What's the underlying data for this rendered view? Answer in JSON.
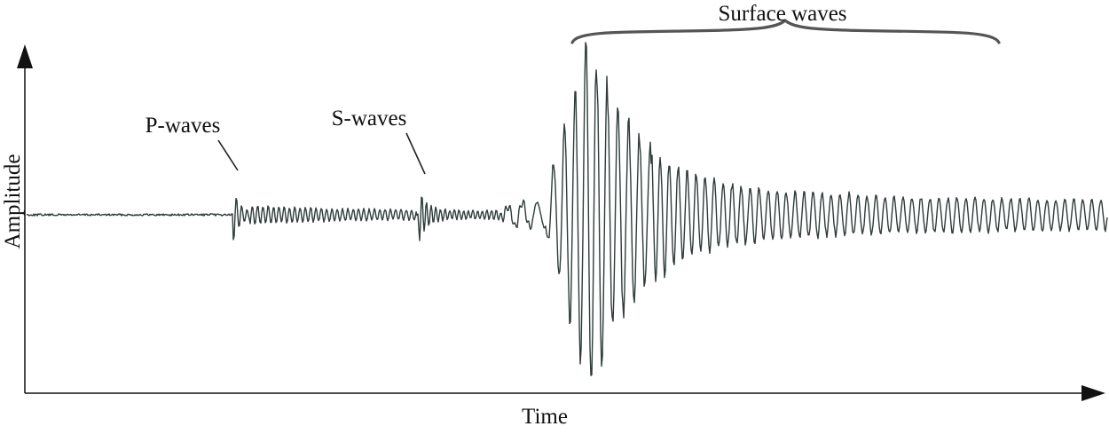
{
  "labels": {
    "y_axis": "Amplitude",
    "x_axis": "Time",
    "p_waves": "P-waves",
    "s_waves": "S-waves",
    "surface_waves": "Surface waves"
  },
  "colors": {
    "trace": "#2e3c3a",
    "axes": "#111111",
    "brace": "#555555"
  }
}
